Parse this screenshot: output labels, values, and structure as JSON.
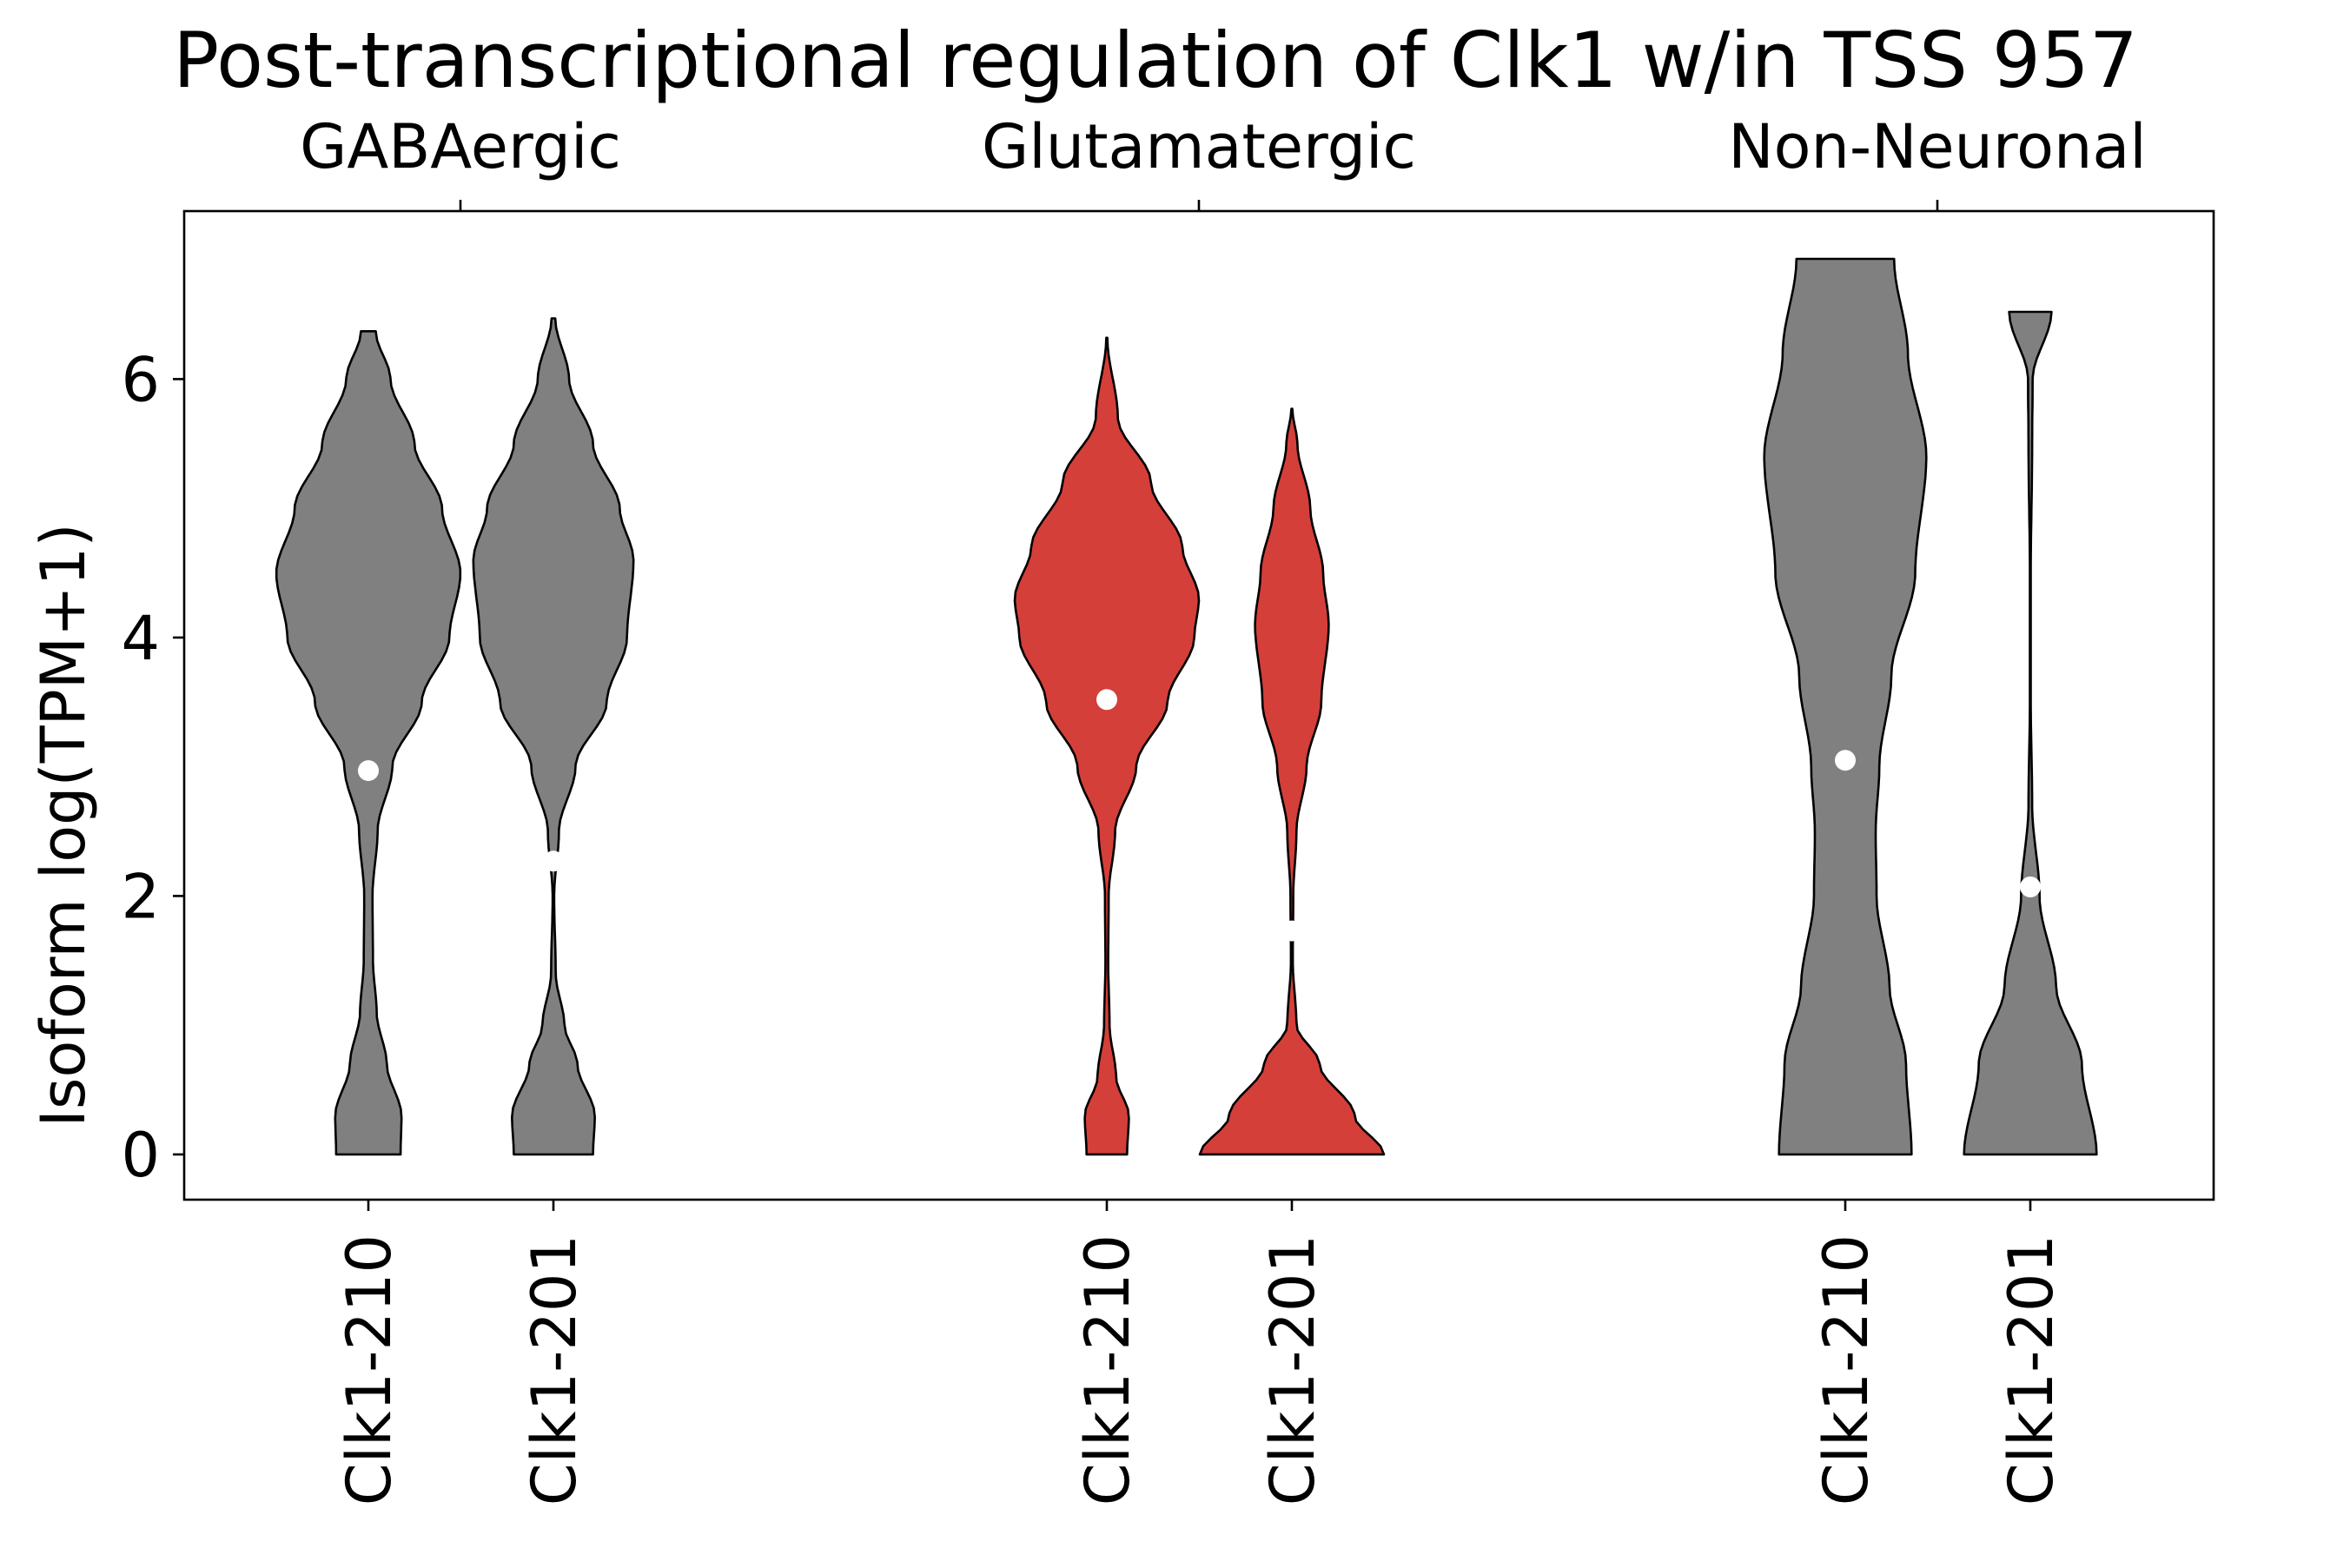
{
  "chart_data": {
    "type": "violin",
    "title": "Post-transcriptional regulation of Clk1 w/in TSS 957",
    "ylabel": "Isoform log(TPM+1)",
    "xlabel": "",
    "ylim": [
      -0.35,
      7.3
    ],
    "yticks": [
      0,
      2,
      4,
      6
    ],
    "grid": false,
    "groups": [
      "GABAergic",
      "Glutamatergic",
      "Non-Neuronal"
    ],
    "categories": [
      "Clk1-210",
      "Clk1-201",
      "Clk1-210",
      "Clk1-201",
      "Clk1-210",
      "Clk1-201"
    ],
    "colors": {
      "default": "#808080",
      "highlight": "#d43f3a",
      "median": "#ffffff",
      "outline": "#000000"
    },
    "violins": [
      {
        "group": "GABAergic",
        "isoform": "Clk1-210",
        "min": 0,
        "max": 6.37,
        "median": 2.97,
        "color": "#808080",
        "profile": [
          [
            0,
            0.35
          ],
          [
            0.3,
            0.36
          ],
          [
            0.7,
            0.2
          ],
          [
            1.1,
            0.09
          ],
          [
            1.5,
            0.05
          ],
          [
            2.0,
            0.045
          ],
          [
            2.5,
            0.1
          ],
          [
            3.0,
            0.26
          ],
          [
            3.5,
            0.58
          ],
          [
            4.0,
            0.88
          ],
          [
            4.5,
            1.0
          ],
          [
            5.0,
            0.8
          ],
          [
            5.5,
            0.5
          ],
          [
            6.0,
            0.24
          ],
          [
            6.37,
            0.08
          ]
        ]
      },
      {
        "group": "GABAergic",
        "isoform": "Clk1-201",
        "min": 0,
        "max": 6.47,
        "median": 2.27,
        "color": "#808080",
        "profile": [
          [
            0,
            0.43
          ],
          [
            0.3,
            0.45
          ],
          [
            0.7,
            0.26
          ],
          [
            1.0,
            0.12
          ],
          [
            1.4,
            0.025
          ],
          [
            2.0,
            0.008
          ],
          [
            2.5,
            0.06
          ],
          [
            3.0,
            0.24
          ],
          [
            3.5,
            0.58
          ],
          [
            4.0,
            0.8
          ],
          [
            4.6,
            0.87
          ],
          [
            5.0,
            0.72
          ],
          [
            5.5,
            0.43
          ],
          [
            6.0,
            0.17
          ],
          [
            6.47,
            0.02
          ]
        ]
      },
      {
        "group": "Glutamatergic",
        "isoform": "Clk1-210",
        "min": 0,
        "max": 6.32,
        "median": 3.52,
        "color": "#d43f3a",
        "profile": [
          [
            0,
            0.22
          ],
          [
            0.3,
            0.24
          ],
          [
            0.6,
            0.1
          ],
          [
            1.0,
            0.03
          ],
          [
            1.5,
            0.015
          ],
          [
            2.0,
            0.02
          ],
          [
            2.5,
            0.09
          ],
          [
            3.0,
            0.32
          ],
          [
            3.5,
            0.66
          ],
          [
            4.0,
            0.95
          ],
          [
            4.3,
            1.0
          ],
          [
            4.7,
            0.82
          ],
          [
            5.2,
            0.48
          ],
          [
            5.7,
            0.12
          ],
          [
            6.32,
            0.006
          ]
        ]
      },
      {
        "group": "Glutamatergic",
        "isoform": "Clk1-201",
        "min": 0,
        "max": 5.77,
        "median": 1.73,
        "color": "#d43f3a",
        "profile": [
          [
            0,
            1.0
          ],
          [
            0.3,
            0.68
          ],
          [
            0.7,
            0.3
          ],
          [
            1.0,
            0.05
          ],
          [
            1.5,
            0.01
          ],
          [
            2.0,
            0.015
          ],
          [
            2.5,
            0.05
          ],
          [
            3.0,
            0.16
          ],
          [
            3.5,
            0.32
          ],
          [
            4.1,
            0.4
          ],
          [
            4.5,
            0.34
          ],
          [
            5.0,
            0.2
          ],
          [
            5.5,
            0.06
          ],
          [
            5.77,
            0.005
          ]
        ]
      },
      {
        "group": "Non-Neuronal",
        "isoform": "Clk1-210",
        "min": 0,
        "max": 6.93,
        "median": 3.05,
        "color": "#808080",
        "profile": [
          [
            0,
            0.72
          ],
          [
            0.7,
            0.66
          ],
          [
            1.3,
            0.48
          ],
          [
            2.0,
            0.34
          ],
          [
            2.5,
            0.33
          ],
          [
            3.0,
            0.37
          ],
          [
            3.7,
            0.5
          ],
          [
            4.5,
            0.76
          ],
          [
            5.4,
            0.88
          ],
          [
            6.2,
            0.68
          ],
          [
            6.93,
            0.53
          ]
        ]
      },
      {
        "group": "Non-Neuronal",
        "isoform": "Clk1-201",
        "min": 0,
        "max": 6.52,
        "median": 2.07,
        "color": "#808080",
        "profile": [
          [
            0,
            0.72
          ],
          [
            0.7,
            0.56
          ],
          [
            1.3,
            0.28
          ],
          [
            2.0,
            0.1
          ],
          [
            2.7,
            0.02
          ],
          [
            3.5,
            0.005
          ],
          [
            4.5,
            0.005
          ],
          [
            5.5,
            0.02
          ],
          [
            6.0,
            0.025
          ],
          [
            6.52,
            0.23
          ]
        ]
      }
    ]
  }
}
